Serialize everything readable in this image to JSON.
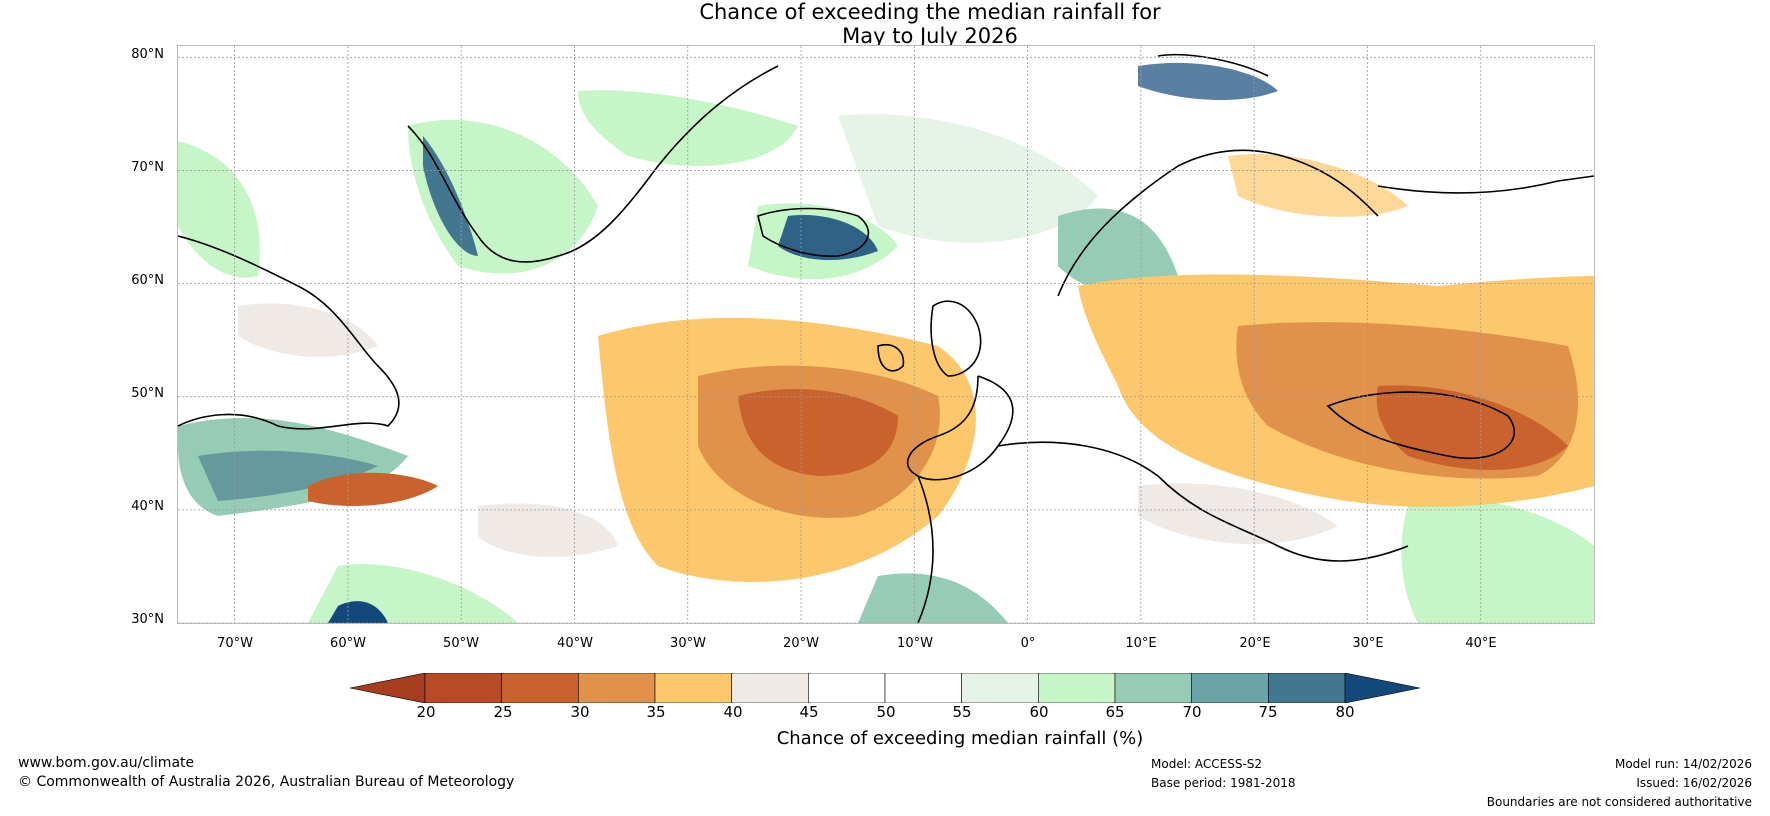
{
  "title": {
    "line1": "Chance of exceeding the median rainfall for",
    "line2": "May to July 2026"
  },
  "axes": {
    "lat_labels": [
      "80°N",
      "70°N",
      "60°N",
      "50°N",
      "40°N",
      "30°N"
    ],
    "lon_labels": [
      "70°W",
      "60°W",
      "50°W",
      "40°W",
      "30°W",
      "20°W",
      "10°W",
      "0°",
      "10°E",
      "20°E",
      "30°E",
      "40°E"
    ],
    "lat_values": [
      80,
      70,
      60,
      50,
      40,
      30
    ],
    "lon_values": [
      -70,
      -60,
      -50,
      -40,
      -30,
      -20,
      -10,
      0,
      10,
      20,
      30,
      40
    ],
    "lat_range": [
      30,
      81
    ],
    "lon_range": [
      -75,
      50
    ]
  },
  "colorbar": {
    "ticks": [
      "20",
      "25",
      "30",
      "35",
      "40",
      "45",
      "50",
      "55",
      "60",
      "65",
      "70",
      "75",
      "80"
    ],
    "colors": [
      "#a63d1f",
      "#b84a26",
      "#c9622c",
      "#e0924a",
      "#fdc86b",
      "#efeae6",
      "#ffffff",
      "#ffffff",
      "#e6f4e8",
      "#c6f5c8",
      "#96ccb5",
      "#6aa3a8",
      "#43768f",
      "#13487b"
    ],
    "label": "Chance of exceeding median rainfall (%)"
  },
  "footer": {
    "website": "www.bom.gov.au/climate",
    "copyright": "© Commonwealth of Australia 2026, Australian Bureau of Meteorology",
    "model": "Model: ACCESS-S2",
    "base_period": "Base period: 1981-2018",
    "model_run": "Model run: 14/02/2026",
    "issued": "Issued: 16/02/2026",
    "disclaimer": "Boundaries are not considered authoritative"
  }
}
